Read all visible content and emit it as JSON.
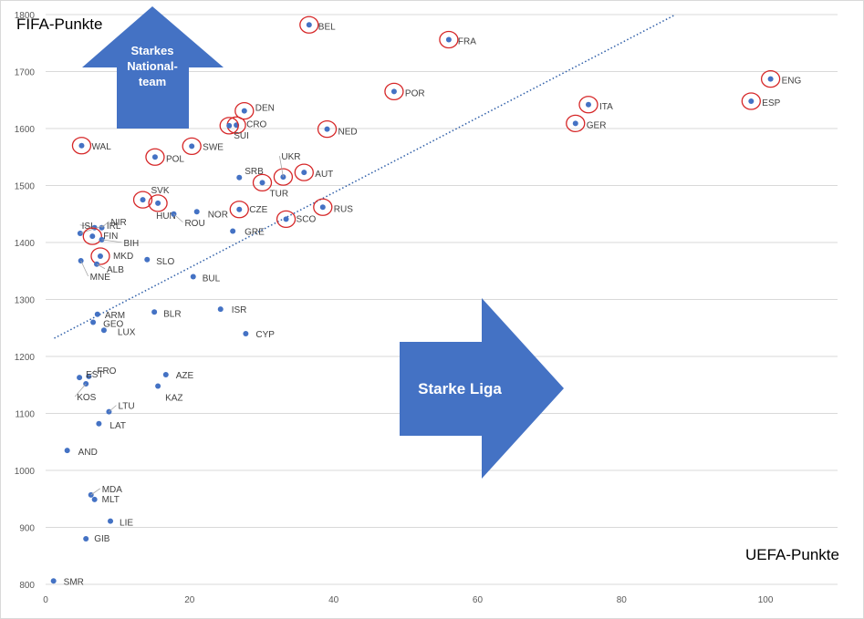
{
  "chart_data": {
    "type": "scatter",
    "y_title": "FIFA-Punkte",
    "x_title": "UEFA-Punkte",
    "xlim": [
      0,
      110
    ],
    "ylim": [
      800,
      1800
    ],
    "x_ticks": [
      "0",
      "20",
      "40",
      "60",
      "80",
      "100"
    ],
    "y_ticks": [
      "800",
      "900",
      "1000",
      "1100",
      "1200",
      "1300",
      "1400",
      "1500",
      "1600",
      "1700",
      "1800"
    ],
    "grid": "horizontal",
    "trendline": {
      "style": "dotted",
      "from": [
        1.2,
        1232
      ],
      "to": [
        87.5,
        1800
      ]
    },
    "annotations": [
      {
        "text_lines": [
          "Starkes",
          "National-",
          "team"
        ],
        "direction": "up"
      },
      {
        "text_lines": [
          "Starke  Liga"
        ],
        "direction": "right"
      }
    ],
    "colors": {
      "marker": "#4472c4",
      "circle": "#d62728",
      "arrow_fill": "#4472c4",
      "grid": "#d9d9d9",
      "trend": "#2e5ea8"
    },
    "points": [
      {
        "label": "BEL",
        "x": 36.6,
        "y": 1782,
        "circled": true
      },
      {
        "label": "FRA",
        "x": 56.0,
        "y": 1756,
        "circled": true
      },
      {
        "label": "ENG",
        "x": 100.7,
        "y": 1687,
        "circled": true
      },
      {
        "label": "POR",
        "x": 48.4,
        "y": 1665,
        "circled": true
      },
      {
        "label": "ESP",
        "x": 98.0,
        "y": 1648,
        "circled": true
      },
      {
        "label": "ITA",
        "x": 75.4,
        "y": 1642,
        "circled": true
      },
      {
        "label": "DEN",
        "x": 27.6,
        "y": 1631,
        "circled": true
      },
      {
        "label": "GER",
        "x": 73.6,
        "y": 1609,
        "circled": true
      },
      {
        "label": "CRO",
        "x": 26.5,
        "y": 1606,
        "circled": true
      },
      {
        "label": "SUI",
        "x": 25.5,
        "y": 1605,
        "circled": true
      },
      {
        "label": "NED",
        "x": 39.1,
        "y": 1599,
        "circled": true
      },
      {
        "label": "WAL",
        "x": 5.0,
        "y": 1570,
        "circled": true
      },
      {
        "label": "SWE",
        "x": 20.3,
        "y": 1569,
        "circled": true
      },
      {
        "label": "POL",
        "x": 15.2,
        "y": 1550,
        "circled": true
      },
      {
        "label": "AUT",
        "x": 35.9,
        "y": 1523,
        "circled": true
      },
      {
        "label": "UKR",
        "x": 33.0,
        "y": 1515,
        "circled": true
      },
      {
        "label": "SRB",
        "x": 26.9,
        "y": 1514,
        "circled": false
      },
      {
        "label": "TUR",
        "x": 30.1,
        "y": 1505,
        "circled": true
      },
      {
        "label": "SVK",
        "x": 13.5,
        "y": 1475,
        "circled": true
      },
      {
        "label": "HUN",
        "x": 15.6,
        "y": 1469,
        "circled": true
      },
      {
        "label": "RUS",
        "x": 38.5,
        "y": 1462,
        "circled": true
      },
      {
        "label": "CZE",
        "x": 26.9,
        "y": 1458,
        "circled": true
      },
      {
        "label": "NOR",
        "x": 21.0,
        "y": 1454,
        "circled": false
      },
      {
        "label": "ROU",
        "x": 17.8,
        "y": 1450,
        "circled": false
      },
      {
        "label": "SCO",
        "x": 33.4,
        "y": 1441,
        "circled": true
      },
      {
        "label": "ISL",
        "x": 6.8,
        "y": 1426,
        "circled": false
      },
      {
        "label": "NIR",
        "x": 7.8,
        "y": 1426,
        "circled": false
      },
      {
        "label": "GRE",
        "x": 26.0,
        "y": 1420,
        "circled": false
      },
      {
        "label": "IRL",
        "x": 4.8,
        "y": 1416,
        "circled": false
      },
      {
        "label": "FIN",
        "x": 6.5,
        "y": 1411,
        "circled": true
      },
      {
        "label": "BIH",
        "x": 7.8,
        "y": 1405,
        "circled": false
      },
      {
        "label": "MKD",
        "x": 7.6,
        "y": 1376,
        "circled": true
      },
      {
        "label": "SLO",
        "x": 14.1,
        "y": 1370,
        "circled": false
      },
      {
        "label": "MNE",
        "x": 4.9,
        "y": 1368,
        "circled": false
      },
      {
        "label": "ALB",
        "x": 7.1,
        "y": 1362,
        "circled": false
      },
      {
        "label": "BUL",
        "x": 20.5,
        "y": 1340,
        "circled": false
      },
      {
        "label": "ISR",
        "x": 24.3,
        "y": 1283,
        "circled": false
      },
      {
        "label": "BLR",
        "x": 15.1,
        "y": 1278,
        "circled": false
      },
      {
        "label": "ARM",
        "x": 7.2,
        "y": 1274,
        "circled": false
      },
      {
        "label": "GEO",
        "x": 6.6,
        "y": 1260,
        "circled": false
      },
      {
        "label": "LUX",
        "x": 8.1,
        "y": 1246,
        "circled": false
      },
      {
        "label": "CYP",
        "x": 27.8,
        "y": 1240,
        "circled": false
      },
      {
        "label": "AZE",
        "x": 16.7,
        "y": 1168,
        "circled": false
      },
      {
        "label": "FRO",
        "x": 6.0,
        "y": 1165,
        "circled": false
      },
      {
        "label": "EST",
        "x": 4.7,
        "y": 1163,
        "circled": false
      },
      {
        "label": "KOS",
        "x": 5.6,
        "y": 1152,
        "circled": false
      },
      {
        "label": "KAZ",
        "x": 15.6,
        "y": 1148,
        "circled": false
      },
      {
        "label": "LTU",
        "x": 8.8,
        "y": 1103,
        "circled": false
      },
      {
        "label": "LAT",
        "x": 7.4,
        "y": 1082,
        "circled": false
      },
      {
        "label": "AND",
        "x": 3.0,
        "y": 1035,
        "circled": false
      },
      {
        "label": "MDA",
        "x": 6.3,
        "y": 957,
        "circled": false
      },
      {
        "label": "MLT",
        "x": 6.8,
        "y": 949,
        "circled": false
      },
      {
        "label": "LIE",
        "x": 9.0,
        "y": 911,
        "circled": false
      },
      {
        "label": "GIB",
        "x": 5.6,
        "y": 880,
        "circled": false
      },
      {
        "label": "SMR",
        "x": 1.1,
        "y": 806,
        "circled": false
      }
    ]
  }
}
